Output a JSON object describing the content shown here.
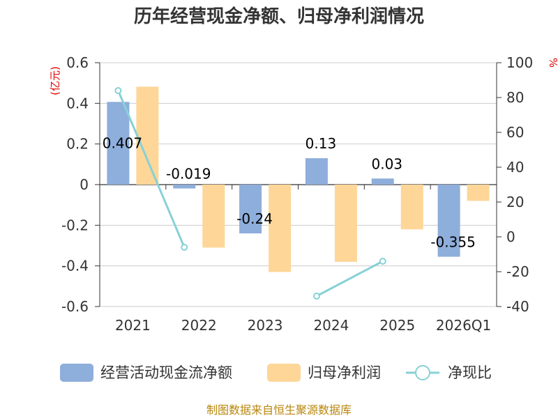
{
  "chart_data": {
    "type": "bar",
    "title": "历年经营现金净额、归母净利润情况",
    "categories": [
      "2021",
      "2022",
      "2023",
      "2024",
      "2025",
      "2026Q1"
    ],
    "left_axis": {
      "unit": "(亿元)",
      "ylim": [
        -0.6,
        0.6
      ],
      "ticks": [
        "0.6",
        "0.4",
        "0.2",
        "0",
        "-0.2",
        "-0.4",
        "-0.6"
      ]
    },
    "right_axis": {
      "unit": "%",
      "ylim": [
        -40,
        100
      ],
      "ticks": [
        "100",
        "80",
        "60",
        "40",
        "20",
        "0",
        "-20",
        "-40"
      ]
    },
    "series": [
      {
        "name": "经营活动现金流净额",
        "type": "bar",
        "axis": "left",
        "color": "#8eaedb",
        "values": [
          0.407,
          -0.019,
          -0.24,
          0.13,
          0.03,
          -0.355
        ],
        "labels": [
          "0.407",
          "-0.019",
          "-0.24",
          "0.13",
          "0.03",
          "-0.355"
        ]
      },
      {
        "name": "归母净利润",
        "type": "bar",
        "axis": "left",
        "color": "#fdd698",
        "values": [
          0.482,
          -0.31,
          -0.43,
          -0.38,
          -0.22,
          -0.08
        ]
      },
      {
        "name": "净现比",
        "type": "line",
        "axis": "right",
        "color": "#87d1d6",
        "values": [
          84,
          -6,
          null,
          -34,
          -14,
          null
        ]
      }
    ],
    "legend_position": "bottom",
    "grid": true
  },
  "footer": {
    "source": "制图数据来自恒生聚源数据库"
  }
}
